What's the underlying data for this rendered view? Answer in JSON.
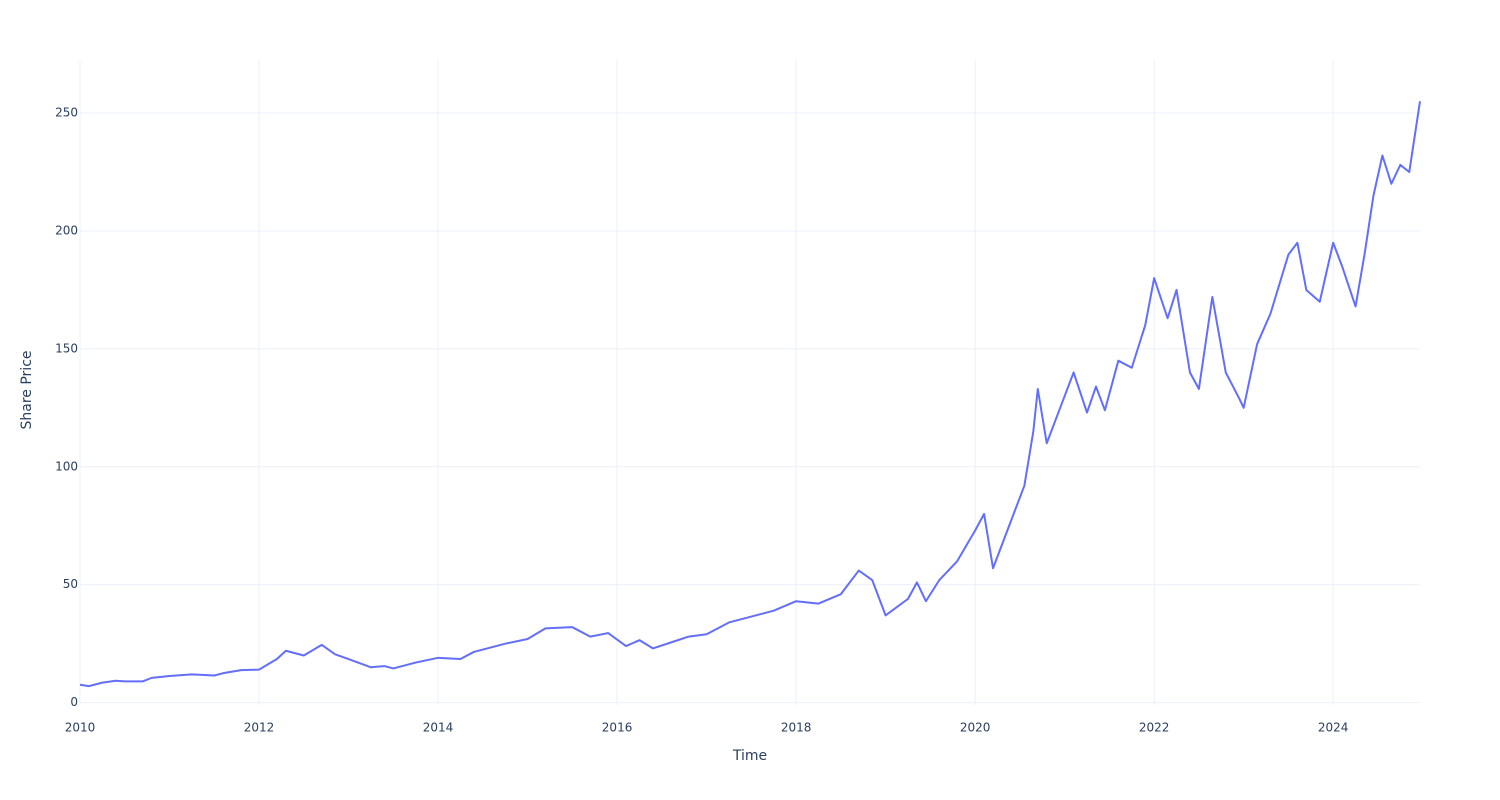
{
  "chart_data": {
    "type": "line",
    "x_label": "Time",
    "y_label": "Share Price",
    "x": [
      2010.0,
      2010.1,
      2010.25,
      2010.4,
      2010.5,
      2010.7,
      2010.8,
      2011.0,
      2011.25,
      2011.5,
      2011.6,
      2011.8,
      2012.0,
      2012.2,
      2012.3,
      2012.5,
      2012.7,
      2012.85,
      2013.0,
      2013.25,
      2013.4,
      2013.5,
      2013.75,
      2014.0,
      2014.25,
      2014.4,
      2014.75,
      2015.0,
      2015.2,
      2015.5,
      2015.7,
      2015.9,
      2016.1,
      2016.25,
      2016.4,
      2016.6,
      2016.8,
      2017.0,
      2017.25,
      2017.5,
      2017.75,
      2018.0,
      2018.25,
      2018.5,
      2018.7,
      2018.85,
      2019.0,
      2019.25,
      2019.35,
      2019.45,
      2019.6,
      2019.8,
      2020.0,
      2020.1,
      2020.2,
      2020.35,
      2020.55,
      2020.65,
      2020.7,
      2020.8,
      2021.0,
      2021.1,
      2021.25,
      2021.35,
      2021.45,
      2021.6,
      2021.75,
      2021.9,
      2022.0,
      2022.15,
      2022.25,
      2022.4,
      2022.5,
      2022.65,
      2022.8,
      2022.95,
      2023.0,
      2023.15,
      2023.3,
      2023.5,
      2023.6,
      2023.7,
      2023.85,
      2024.0,
      2024.1,
      2024.25,
      2024.35,
      2024.45,
      2024.55,
      2024.65,
      2024.75,
      2024.85,
      2024.97
    ],
    "series": [
      {
        "name": "Share Price",
        "color": "#636efa",
        "values": [
          7.6,
          7.0,
          8.5,
          9.3,
          9.0,
          9.0,
          10.5,
          11.3,
          12.0,
          11.5,
          12.5,
          13.8,
          14.0,
          18.5,
          22.0,
          20.0,
          24.5,
          20.5,
          18.5,
          15.0,
          15.5,
          14.5,
          17.0,
          19.0,
          18.5,
          21.5,
          25.0,
          27.0,
          31.5,
          32.0,
          28.0,
          29.5,
          24.0,
          26.5,
          23.0,
          25.5,
          28.0,
          29.0,
          34.0,
          36.5,
          39.0,
          43.0,
          42.0,
          46.0,
          56.0,
          52.0,
          37.0,
          44.0,
          51.0,
          43.0,
          52.0,
          60.0,
          73.0,
          80.0,
          57.0,
          72.0,
          92.0,
          115.0,
          133.0,
          110.0,
          130.0,
          140.0,
          123.0,
          134.0,
          124.0,
          145.0,
          142.0,
          160.0,
          180.0,
          163.0,
          175.0,
          140.0,
          133.0,
          172.0,
          140.0,
          129.0,
          125.0,
          152.0,
          165.0,
          190.0,
          195.0,
          175.0,
          170.0,
          195.0,
          185.0,
          168.0,
          190.0,
          215.0,
          232.0,
          220.0,
          228.0,
          225.0,
          255.0
        ]
      }
    ],
    "xlim": [
      2010,
      2024.97
    ],
    "xticks": [
      2010,
      2012,
      2014,
      2016,
      2018,
      2020,
      2022,
      2024
    ],
    "ylim": [
      -1,
      272.5
    ],
    "yticks": [
      0,
      50,
      100,
      150,
      200,
      250
    ],
    "grid": true,
    "grid_color": "#ebf0f8",
    "background": "#ffffff"
  }
}
